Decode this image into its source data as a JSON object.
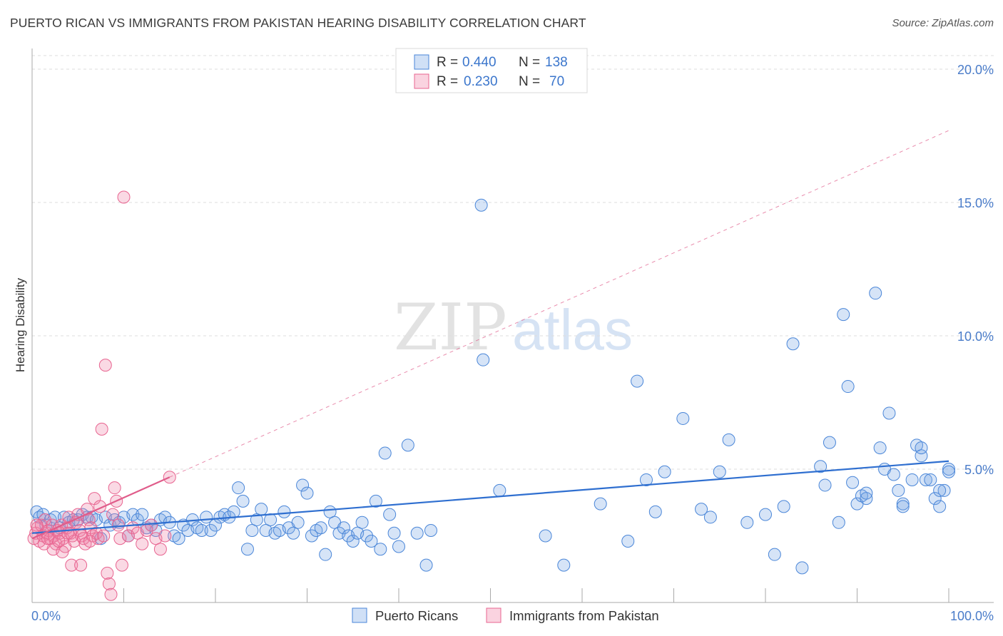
{
  "title": "PUERTO RICAN VS IMMIGRANTS FROM PAKISTAN HEARING DISABILITY CORRELATION CHART",
  "source": "Source: ZipAtlas.com",
  "colors": {
    "blue": "#4a86d8",
    "blue_fill": "rgba(120,165,230,0.30)",
    "blue_line": "#2f6fd0",
    "pink": "#e86490",
    "pink_fill": "rgba(240,130,165,0.30)",
    "pink_line": "#e05c8a",
    "tick_text": "#4a7cc9",
    "grid": "#dddddd"
  },
  "legend": {
    "row1": {
      "r_label": "R = ",
      "r_value": "0.440",
      "n_label": "N = ",
      "n_value": "138"
    },
    "row2": {
      "r_label": "R = ",
      "r_value": "0.230",
      "n_label": "N = ",
      "n_value": "70"
    }
  },
  "watermark": {
    "left": "ZIP",
    "right": "atlas"
  },
  "chart_data": {
    "type": "scatter",
    "title": "PUERTO RICAN VS IMMIGRANTS FROM PAKISTAN HEARING DISABILITY CORRELATION CHART",
    "ylabel": "Hearing Disability",
    "xlabel": "",
    "xlim": [
      0,
      100
    ],
    "ylim": [
      0,
      20
    ],
    "x_tick_labels": [
      "0.0%",
      "100.0%"
    ],
    "y_ticks": [
      5,
      10,
      15,
      20
    ],
    "y_tick_labels": [
      "5.0%",
      "10.0%",
      "15.0%",
      "20.0%"
    ],
    "grid": "horizontal dashed",
    "legend_position": "top-center",
    "series": [
      {
        "name": "Puerto Ricans",
        "color": "#4a86d8",
        "stats": {
          "R": 0.44,
          "N": 138
        },
        "trend": {
          "x": [
            0,
            100
          ],
          "y": [
            2.6,
            5.3
          ],
          "style": "solid"
        },
        "points": [
          [
            0.5,
            3.4
          ],
          [
            0.8,
            3.2
          ],
          [
            1.2,
            3.3
          ],
          [
            1.5,
            2.9
          ],
          [
            2,
            3.1
          ],
          [
            2.5,
            3.2
          ],
          [
            3,
            2.8
          ],
          [
            3.5,
            3.2
          ],
          [
            4,
            3.0
          ],
          [
            4.5,
            3.1
          ],
          [
            5,
            3.1
          ],
          [
            5.5,
            3.3
          ],
          [
            6,
            3.2
          ],
          [
            6.5,
            3.2
          ],
          [
            7,
            3.1
          ],
          [
            7.5,
            2.4
          ],
          [
            8,
            3.2
          ],
          [
            8.5,
            2.9
          ],
          [
            9,
            3.1
          ],
          [
            9.5,
            3.0
          ],
          [
            10,
            3.2
          ],
          [
            10.5,
            2.5
          ],
          [
            11,
            3.3
          ],
          [
            11.5,
            3.1
          ],
          [
            12,
            3.3
          ],
          [
            12.5,
            2.8
          ],
          [
            13,
            2.9
          ],
          [
            13.5,
            2.7
          ],
          [
            14,
            3.1
          ],
          [
            14.5,
            3.2
          ],
          [
            15,
            3.0
          ],
          [
            15.5,
            2.5
          ],
          [
            16,
            2.4
          ],
          [
            16.5,
            2.9
          ],
          [
            17,
            2.7
          ],
          [
            17.5,
            3.1
          ],
          [
            18,
            2.8
          ],
          [
            18.5,
            2.7
          ],
          [
            19,
            3.2
          ],
          [
            19.5,
            2.7
          ],
          [
            20,
            2.9
          ],
          [
            20.5,
            3.2
          ],
          [
            21,
            3.3
          ],
          [
            21.5,
            3.2
          ],
          [
            22,
            3.4
          ],
          [
            22.5,
            4.3
          ],
          [
            23,
            3.8
          ],
          [
            23.5,
            2.0
          ],
          [
            24,
            2.7
          ],
          [
            24.5,
            3.1
          ],
          [
            25,
            3.5
          ],
          [
            25.5,
            2.7
          ],
          [
            26,
            3.1
          ],
          [
            26.5,
            2.6
          ],
          [
            27,
            2.7
          ],
          [
            27.5,
            3.4
          ],
          [
            28,
            2.8
          ],
          [
            28.5,
            2.6
          ],
          [
            29,
            3.0
          ],
          [
            29.5,
            4.4
          ],
          [
            30,
            4.1
          ],
          [
            30.5,
            2.5
          ],
          [
            31,
            2.7
          ],
          [
            31.5,
            2.8
          ],
          [
            32,
            1.8
          ],
          [
            32.5,
            3.4
          ],
          [
            33,
            3.0
          ],
          [
            33.5,
            2.6
          ],
          [
            34,
            2.8
          ],
          [
            34.5,
            2.5
          ],
          [
            35,
            2.3
          ],
          [
            35.5,
            2.6
          ],
          [
            36,
            3.0
          ],
          [
            36.5,
            2.5
          ],
          [
            37,
            2.3
          ],
          [
            37.5,
            3.8
          ],
          [
            38,
            2.0
          ],
          [
            38.5,
            5.6
          ],
          [
            39,
            3.3
          ],
          [
            39.5,
            2.6
          ],
          [
            40,
            2.1
          ],
          [
            41,
            5.9
          ],
          [
            42,
            2.6
          ],
          [
            43,
            1.4
          ],
          [
            43.5,
            2.7
          ],
          [
            49,
            14.9
          ],
          [
            49.2,
            9.1
          ],
          [
            51,
            4.2
          ],
          [
            56,
            2.5
          ],
          [
            58,
            1.4
          ],
          [
            62,
            3.7
          ],
          [
            65,
            2.3
          ],
          [
            66,
            8.3
          ],
          [
            67,
            4.6
          ],
          [
            68,
            3.4
          ],
          [
            69,
            4.9
          ],
          [
            71,
            6.9
          ],
          [
            73,
            3.5
          ],
          [
            74,
            3.2
          ],
          [
            75,
            4.9
          ],
          [
            76,
            6.1
          ],
          [
            78,
            3.0
          ],
          [
            80,
            3.3
          ],
          [
            81,
            1.8
          ],
          [
            82,
            3.6
          ],
          [
            83,
            9.7
          ],
          [
            84,
            1.3
          ],
          [
            86,
            5.1
          ],
          [
            86.5,
            4.4
          ],
          [
            87,
            6.0
          ],
          [
            88,
            3.0
          ],
          [
            88.5,
            10.8
          ],
          [
            89,
            8.1
          ],
          [
            89.5,
            4.5
          ],
          [
            90,
            3.7
          ],
          [
            90.5,
            4.0
          ],
          [
            91,
            3.9
          ],
          [
            92,
            11.6
          ],
          [
            92.5,
            5.8
          ],
          [
            93,
            5.0
          ],
          [
            93.5,
            7.1
          ],
          [
            94,
            4.8
          ],
          [
            94.5,
            4.2
          ],
          [
            95,
            3.7
          ],
          [
            96,
            4.6
          ],
          [
            96.5,
            5.9
          ],
          [
            97,
            5.5
          ],
          [
            97.5,
            4.6
          ],
          [
            98,
            4.6
          ],
          [
            98.5,
            3.9
          ],
          [
            99,
            3.6
          ],
          [
            99.5,
            4.2
          ],
          [
            100,
            5.0
          ],
          [
            100,
            4.9
          ],
          [
            99,
            4.2
          ],
          [
            97,
            5.8
          ],
          [
            95,
            3.6
          ],
          [
            91,
            4.1
          ]
        ]
      },
      {
        "name": "Immigrants from Pakistan",
        "color": "#e86490",
        "stats": {
          "R": 0.23,
          "N": 70
        },
        "trend": {
          "x": [
            0,
            15
          ],
          "y": [
            2.4,
            4.7
          ],
          "style": "solid",
          "extension": {
            "x": [
              15,
              100
            ],
            "y": [
              4.7,
              17.7
            ],
            "style": "dashed"
          }
        },
        "points": [
          [
            0.2,
            2.4
          ],
          [
            0.4,
            2.6
          ],
          [
            0.6,
            2.8
          ],
          [
            0.8,
            2.3
          ],
          [
            1.0,
            2.9
          ],
          [
            1.2,
            2.5
          ],
          [
            1.4,
            3.1
          ],
          [
            1.6,
            2.6
          ],
          [
            1.8,
            2.7
          ],
          [
            2.0,
            2.4
          ],
          [
            2.2,
            2.9
          ],
          [
            2.4,
            2.5
          ],
          [
            2.6,
            2.2
          ],
          [
            2.8,
            2.7
          ],
          [
            3.0,
            2.6
          ],
          [
            3.2,
            2.9
          ],
          [
            3.4,
            2.4
          ],
          [
            3.6,
            2.1
          ],
          [
            3.8,
            2.8
          ],
          [
            4.0,
            3.2
          ],
          [
            4.2,
            2.6
          ],
          [
            4.4,
            2.5
          ],
          [
            4.6,
            2.3
          ],
          [
            4.8,
            3.0
          ],
          [
            5.0,
            3.3
          ],
          [
            5.2,
            2.7
          ],
          [
            5.4,
            2.5
          ],
          [
            5.6,
            2.4
          ],
          [
            5.8,
            2.2
          ],
          [
            6.0,
            3.5
          ],
          [
            6.2,
            3.1
          ],
          [
            6.4,
            2.8
          ],
          [
            6.6,
            2.5
          ],
          [
            6.8,
            3.9
          ],
          [
            7.0,
            2.6
          ],
          [
            7.2,
            2.4
          ],
          [
            7.4,
            3.6
          ],
          [
            7.6,
            6.5
          ],
          [
            7.8,
            2.5
          ],
          [
            8.0,
            8.9
          ],
          [
            8.2,
            1.1
          ],
          [
            8.4,
            0.7
          ],
          [
            8.6,
            0.3
          ],
          [
            8.8,
            3.3
          ],
          [
            9.0,
            4.3
          ],
          [
            9.2,
            3.8
          ],
          [
            9.4,
            2.9
          ],
          [
            9.6,
            2.4
          ],
          [
            9.8,
            1.4
          ],
          [
            10,
            15.2
          ],
          [
            10.5,
            2.5
          ],
          [
            11,
            2.8
          ],
          [
            11.5,
            2.6
          ],
          [
            12,
            2.2
          ],
          [
            12.5,
            2.7
          ],
          [
            13,
            2.9
          ],
          [
            13.5,
            2.4
          ],
          [
            14,
            2.0
          ],
          [
            14.5,
            2.5
          ],
          [
            15,
            4.7
          ],
          [
            2.3,
            2.0
          ],
          [
            3.3,
            1.9
          ],
          [
            4.3,
            1.4
          ],
          [
            5.3,
            1.4
          ],
          [
            6.3,
            2.3
          ],
          [
            1.3,
            2.2
          ],
          [
            0.5,
            2.9
          ],
          [
            1.7,
            2.4
          ],
          [
            2.9,
            2.3
          ],
          [
            3.9,
            2.6
          ]
        ]
      }
    ]
  }
}
